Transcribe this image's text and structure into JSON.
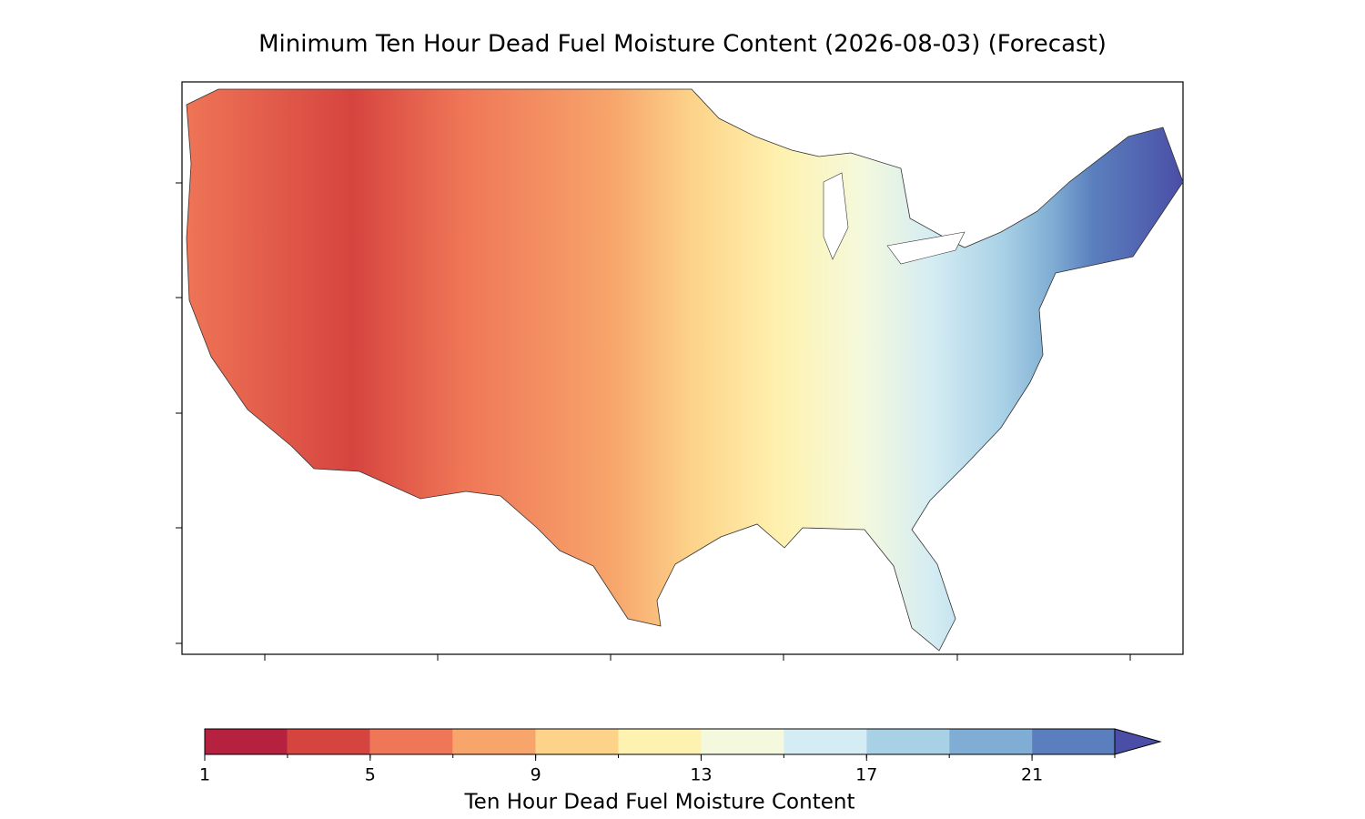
{
  "chart_data": {
    "type": "map",
    "title": "Minimum Ten Hour Dead Fuel Moisture Content (2026-08-03) (Forecast)",
    "colorbar": {
      "label": "Ten Hour Dead Fuel Moisture Content",
      "levels": [
        1,
        3,
        5,
        7,
        9,
        11,
        13,
        15,
        17,
        19,
        21,
        23
      ],
      "colors": [
        "#b5213f",
        "#d6443f",
        "#ef7657",
        "#f7a56b",
        "#fdd38a",
        "#fef2b0",
        "#f4f9dd",
        "#d4ecf3",
        "#a9d1e6",
        "#7fadd3",
        "#5b7fbe"
      ],
      "extend": "max",
      "extend_color": "#4a4ea6",
      "ticks": [
        1,
        5,
        9,
        13,
        17,
        21
      ]
    }
  }
}
